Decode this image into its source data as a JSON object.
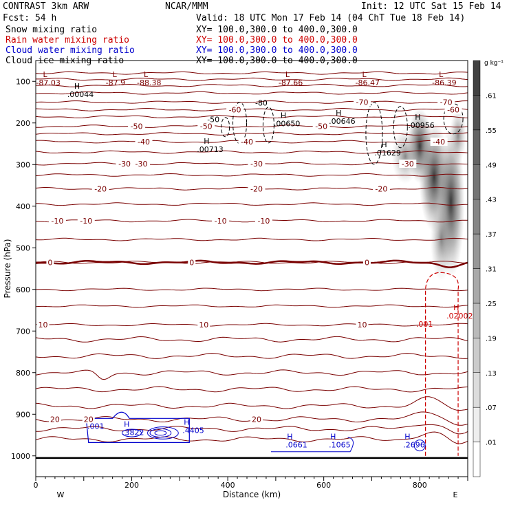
{
  "header": {
    "model": "CONTRAST  3km ARW",
    "org": "NCAR/MMM",
    "init": "Init: 12 UTC Sat 15 Feb 14",
    "fcst": "Fcst:   54 h",
    "valid": "Valid: 18 UTC Mon 17 Feb 14 (04 ChT Tue 18 Feb 14)"
  },
  "fields": [
    {
      "name": "Snow mixing ratio",
      "xy": "XY= 100.0,300.0 to 400.0,300.0",
      "color": "#000000"
    },
    {
      "name": "Rain water mixing ratio",
      "xy": "XY= 100.0,300.0 to 400.0,300.0",
      "color": "#cc0000"
    },
    {
      "name": "Cloud water mixing ratio",
      "xy": "XY= 100.0,300.0 to 400.0,300.0",
      "color": "#0000cc"
    },
    {
      "name": "Cloud ice mixing ratio",
      "xy": "XY= 100.0,300.0 to 400.0,300.0",
      "color": "#000000"
    }
  ],
  "chart_data": {
    "type": "heatmap",
    "xlabel": "Distance (km)",
    "ylabel": "Pressure (hPa)",
    "xlim": [
      0,
      900
    ],
    "ylim": [
      1050,
      50
    ],
    "x_ticks": [
      0,
      200,
      400,
      600,
      800
    ],
    "y_ticks": [
      100,
      200,
      300,
      400,
      500,
      600,
      700,
      800,
      900,
      1000
    ],
    "end_labels": {
      "left": "W",
      "right": "E"
    },
    "colorbar": {
      "unit": "g kg⁻¹",
      "levels": [
        0.01,
        0.07,
        0.13,
        0.19,
        0.25,
        0.31,
        0.37,
        0.43,
        0.49,
        0.55,
        0.61
      ],
      "labels": [
        ".01",
        ".07",
        ".13",
        ".19",
        ".25",
        ".31",
        ".37",
        ".43",
        ".49",
        ".55",
        ".61"
      ]
    },
    "temperature_isotherms": {
      "color": "#7a0000",
      "levels": [
        {
          "label": "-70",
          "pressure": 150,
          "label_x": [
            680,
            855
          ]
        },
        {
          "label": "-60",
          "pressure": 168,
          "label_x": [
            415,
            870
          ]
        },
        {
          "label": "-50",
          "pressure": 208,
          "label_x": [
            210,
            355,
            595
          ]
        },
        {
          "label": "-40",
          "pressure": 245,
          "label_x": [
            225,
            440,
            840
          ]
        },
        {
          "label": "-30",
          "pressure": 298,
          "label_x": [
            185,
            220,
            460,
            775
          ]
        },
        {
          "label": "-20",
          "pressure": 358,
          "label_x": [
            135,
            460,
            720
          ]
        },
        {
          "label": "-10",
          "pressure": 435,
          "label_x": [
            45,
            105,
            385,
            475
          ]
        },
        {
          "label": "0",
          "pressure": 535,
          "label_x": [
            30,
            325,
            690
          ]
        },
        {
          "label": "10",
          "pressure": 685,
          "label_x": [
            15,
            350,
            680
          ]
        },
        {
          "label": "20",
          "pressure": 912,
          "label_x": [
            40,
            110,
            460
          ]
        }
      ]
    },
    "highs_lows": [
      {
        "type": "L",
        "value": "-87.03",
        "x": 15,
        "p": 90
      },
      {
        "type": "L",
        "value": "-87.9",
        "x": 160,
        "p": 90
      },
      {
        "type": "L",
        "value": "-88.38",
        "x": 225,
        "p": 90
      },
      {
        "type": "L",
        "value": "-87.66",
        "x": 520,
        "p": 90
      },
      {
        "type": "L",
        "value": "-86.47",
        "x": 680,
        "p": 90
      },
      {
        "type": "L",
        "value": "-86.39",
        "x": 840,
        "p": 90
      },
      {
        "type": "H",
        "value": ".00044",
        "x": 80,
        "p": 118
      },
      {
        "type": "H",
        "value": ".00713",
        "x": 350,
        "p": 250
      },
      {
        "type": "H",
        "value": ".00650",
        "x": 510,
        "p": 188
      },
      {
        "type": "H",
        "value": ".00646",
        "x": 625,
        "p": 182
      },
      {
        "type": "H",
        "value": ".01629",
        "x": 720,
        "p": 258
      },
      {
        "type": "H",
        "value": ".00956",
        "x": 790,
        "p": 192
      },
      {
        "type": "H",
        "value": ".02002",
        "x": 870,
        "p": 650
      }
    ],
    "rain_contour_label": {
      "value": ".001",
      "x": 810,
      "p": 690
    },
    "snow_contour_labels": [
      {
        "value": "-80",
        "x": 470,
        "p": 158
      },
      {
        "value": "-50",
        "x": 370,
        "p": 198
      }
    ],
    "cloud_water": {
      "contour_label": {
        "value": ".001",
        "x": 125,
        "p": 935
      },
      "maxima": [
        {
          "type": "H",
          "value": ".3822",
          "x": 195,
          "p": 950
        },
        {
          "type": "H",
          "value": ".4405",
          "x": 320,
          "p": 945
        },
        {
          "type": "H",
          "value": ".0661",
          "x": 535,
          "p": 980
        },
        {
          "type": "H",
          "value": ".1065",
          "x": 625,
          "p": 980
        },
        {
          "type": "H",
          "value": ".2696",
          "x": 780,
          "p": 980
        }
      ]
    }
  }
}
